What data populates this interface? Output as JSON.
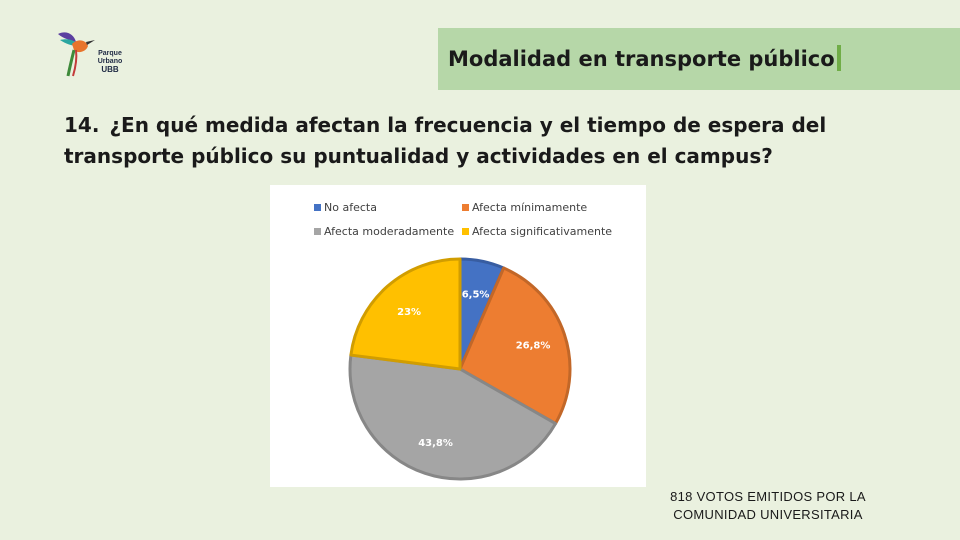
{
  "logo": {
    "icon": "hummingbird-icon",
    "lines": [
      "Parque",
      "Urbano",
      "UBB"
    ]
  },
  "header": {
    "title": "Modalidad en transporte público"
  },
  "question": {
    "number": "14.",
    "text": "¿En qué medida afectan la frecuencia y el tiempo de espera del transporte público su puntualidad y actividades en el campus?"
  },
  "chart_data": {
    "type": "pie",
    "categories": [
      "No afecta",
      "Afecta mínimamente",
      "Afecta moderadamente",
      "Afecta significativamente"
    ],
    "values": [
      6.5,
      26.8,
      43.8,
      23
    ],
    "data_labels": [
      "6,5%",
      "26,8%",
      "43,8%",
      "23%"
    ],
    "colors": [
      "#4472c4",
      "#ed7d31",
      "#a5a5a5",
      "#ffc000"
    ],
    "legend_position": "top",
    "title": ""
  },
  "footnote": {
    "line1": "818  VOTOS EMITIDOS POR LA",
    "line2": "COMUNIDAD UNIVERSITARIA"
  }
}
